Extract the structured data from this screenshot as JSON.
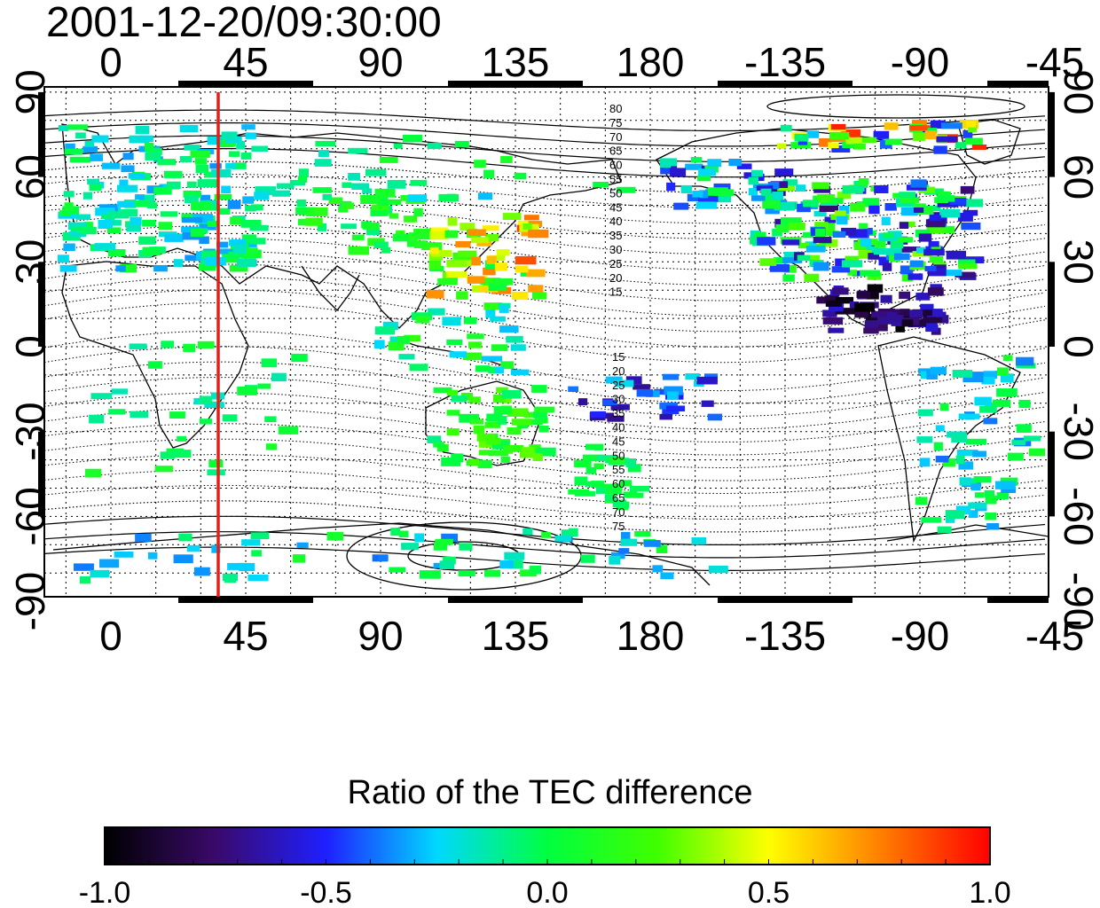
{
  "title": "2001-12-20/09:30:00",
  "map": {
    "lon_ticks": [
      "0",
      "45",
      "90",
      "135",
      "180",
      "-135",
      "-90",
      "-45"
    ],
    "lat_ticks": [
      "90",
      "60",
      "30",
      "0",
      "-30",
      "-60",
      "-90"
    ],
    "highlight_line": {
      "lon": 38,
      "color": "#e0201b"
    },
    "contour_labels_north": [
      "80",
      "75",
      "70",
      "65",
      "60",
      "55",
      "50",
      "45",
      "40",
      "35",
      "30",
      "25",
      "20",
      "15"
    ],
    "contour_labels_south": [
      "15",
      "20",
      "25",
      "30",
      "35",
      "40",
      "45",
      "50",
      "55",
      "60",
      "65",
      "70",
      "75"
    ]
  },
  "colorbar": {
    "title": "Ratio of the TEC difference",
    "min": -1.0,
    "max": 1.0,
    "tick_labels": [
      "-1.0",
      "-0.5",
      "0.0",
      "0.5",
      "1.0"
    ],
    "stops": [
      "#000000",
      "#3a0a6a",
      "#1f1fff",
      "#00d8ff",
      "#00ff40",
      "#40ff00",
      "#ffff00",
      "#ff8000",
      "#ff0000"
    ]
  }
}
